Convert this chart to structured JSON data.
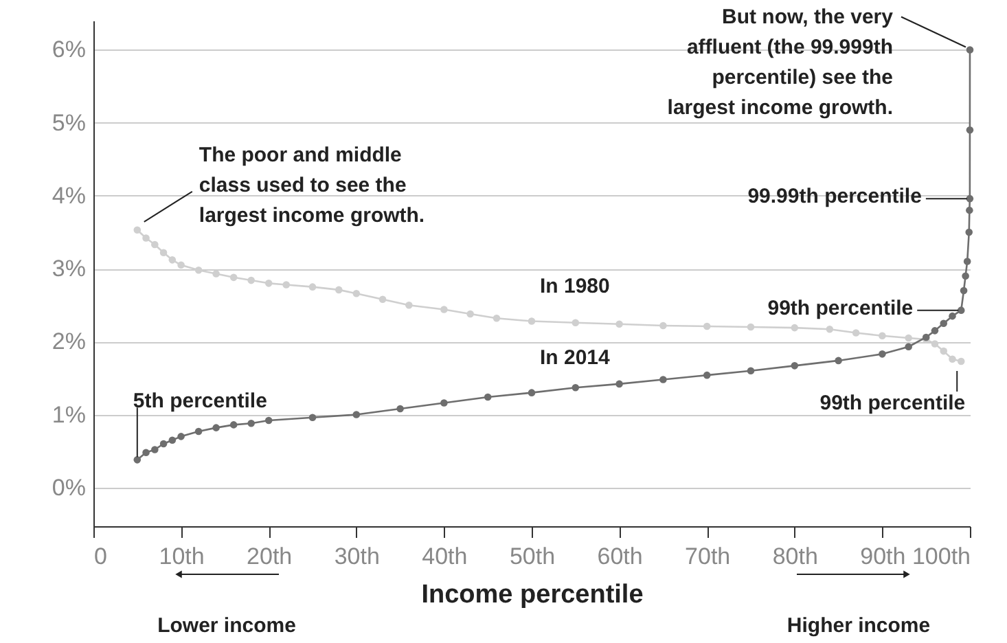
{
  "chart_data": {
    "type": "line",
    "xlabel": "Income percentile",
    "xlim": [
      0,
      100
    ],
    "ylim": [
      -0.53,
      6.4
    ],
    "xticks": [
      0,
      {
        "value": 10,
        "label": "10th"
      },
      {
        "value": 20,
        "label": "20th"
      },
      {
        "value": 30,
        "label": "30th"
      },
      {
        "value": 40,
        "label": "40th"
      },
      {
        "value": 50,
        "label": "50th"
      },
      {
        "value": 60,
        "label": "60th"
      },
      {
        "value": 70,
        "label": "70th"
      },
      {
        "value": 80,
        "label": "80th"
      },
      {
        "value": 90,
        "label": "90th"
      },
      {
        "value": 100,
        "label": "100th"
      }
    ],
    "yticks": [
      {
        "value": 0,
        "label": "0%"
      },
      {
        "value": 1,
        "label": "1%"
      },
      {
        "value": 2,
        "label": "2%"
      },
      {
        "value": 3,
        "label": "3%"
      },
      {
        "value": 4,
        "label": "4%"
      },
      {
        "value": 5,
        "label": "5%"
      },
      {
        "value": 6,
        "label": "6%"
      }
    ],
    "grid": "y",
    "marker": "circle",
    "line_style": "solid",
    "series": [
      {
        "name": "In 1980",
        "color": "#cfcfcf",
        "x": [
          5,
          6,
          7,
          8,
          9,
          10,
          12,
          14,
          16,
          18,
          20,
          22,
          25,
          28,
          30,
          33,
          36,
          40,
          43,
          46,
          50,
          55,
          60,
          65,
          70,
          75,
          80,
          84,
          87,
          90,
          93,
          95,
          96,
          97,
          98,
          99
        ],
        "values": [
          3.53,
          3.42,
          3.33,
          3.22,
          3.12,
          3.05,
          2.98,
          2.93,
          2.88,
          2.84,
          2.8,
          2.78,
          2.75,
          2.71,
          2.66,
          2.58,
          2.5,
          2.44,
          2.38,
          2.32,
          2.28,
          2.26,
          2.24,
          2.22,
          2.21,
          2.2,
          2.19,
          2.17,
          2.12,
          2.08,
          2.05,
          2.03,
          1.97,
          1.87,
          1.76,
          1.73
        ]
      },
      {
        "name": "In 2014",
        "color": "#6e6e6e",
        "x": [
          5,
          6,
          7,
          8,
          9,
          10,
          12,
          14,
          16,
          18,
          20,
          25,
          30,
          35,
          40,
          45,
          50,
          55,
          60,
          65,
          70,
          75,
          80,
          85,
          90,
          93,
          95,
          96,
          97,
          98,
          99,
          99.3,
          99.5,
          99.7,
          99.9,
          99.95,
          99.99,
          99.995,
          99.999
        ],
        "values": [
          0.38,
          0.48,
          0.52,
          0.6,
          0.65,
          0.7,
          0.77,
          0.82,
          0.86,
          0.88,
          0.92,
          0.96,
          1.0,
          1.08,
          1.16,
          1.24,
          1.3,
          1.37,
          1.42,
          1.48,
          1.54,
          1.6,
          1.67,
          1.74,
          1.83,
          1.93,
          2.06,
          2.15,
          2.25,
          2.35,
          2.43,
          2.7,
          2.9,
          3.1,
          3.5,
          3.8,
          3.96,
          4.9,
          6.0
        ]
      }
    ],
    "annotations": [
      {
        "text": "The poor and middle class used to see the largest income growth.",
        "x": 5,
        "y": 3.53
      },
      {
        "text": "5th percentile",
        "x": 5,
        "y": 0.38
      },
      {
        "text": "But now, the very affluent (the 99.999th percentile) see the largest income growth.",
        "x": 99.999,
        "y": 6.0
      },
      {
        "text": "99.99th percentile",
        "x": 99.99,
        "y": 3.96
      },
      {
        "text": "99th percentile",
        "x": 99,
        "y": 2.43
      },
      {
        "text": "99th percentile",
        "x": 99,
        "y": 1.73
      },
      "Lower income",
      "Higher income"
    ]
  }
}
